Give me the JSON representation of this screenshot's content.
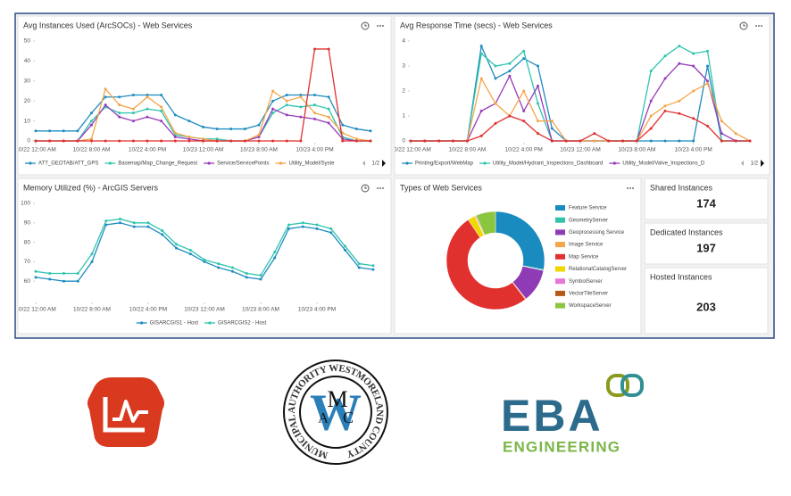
{
  "chart_data": [
    {
      "type": "line",
      "title": "Avg Instances Used (ArcSOCs) - Web Services",
      "x": [
        0,
        2,
        4,
        6,
        8,
        10,
        12,
        14,
        16,
        18,
        20,
        22,
        24,
        26,
        28,
        30,
        32,
        34,
        36,
        38,
        40,
        42,
        44,
        46,
        48
      ],
      "xlim": [
        0,
        48
      ],
      "xticks": [
        {
          "value": 0,
          "label": "10/22 12:00 AM"
        },
        {
          "value": 8,
          "label": "10/22 8:00 AM"
        },
        {
          "value": 16,
          "label": "10/22 4:00 PM"
        },
        {
          "value": 24,
          "label": "10/23 12:00 AM"
        },
        {
          "value": 32,
          "label": "10/23 8:00 AM"
        },
        {
          "value": 40,
          "label": "10/23 4:00 PM"
        }
      ],
      "ylim": [
        0,
        50
      ],
      "yticks": [
        0,
        10,
        20,
        30,
        40,
        50
      ],
      "legend_page": "1/2",
      "series": [
        {
          "name": "ATT_GEOTAB/ATT_GPS",
          "color": "#1f8cc0",
          "values": [
            5,
            5,
            5,
            5,
            14,
            22,
            22,
            23,
            23,
            23,
            13,
            10,
            7,
            6,
            6,
            6,
            8,
            20,
            23,
            23,
            23,
            22,
            8,
            6,
            5
          ]
        },
        {
          "name": "Basemap/Map_Change_Request",
          "color": "#2fc4ae",
          "values": [
            0,
            0,
            0,
            0,
            10,
            17,
            14,
            14,
            16,
            15,
            3,
            2,
            1,
            1,
            0,
            0,
            2,
            14,
            18,
            17,
            18,
            16,
            2,
            0,
            0
          ]
        },
        {
          "name": "Service/ServicePoints",
          "color": "#963cba",
          "values": [
            0,
            0,
            0,
            0,
            8,
            18,
            12,
            10,
            12,
            10,
            2,
            1,
            0,
            0,
            0,
            0,
            2,
            16,
            13,
            12,
            11,
            9,
            1,
            0,
            0
          ]
        },
        {
          "name": "Utility_Model/Syste",
          "color": "#f5a54a",
          "values": [
            0,
            0,
            0,
            0,
            1,
            26,
            18,
            16,
            22,
            17,
            4,
            2,
            1,
            0,
            0,
            0,
            3,
            25,
            20,
            22,
            14,
            12,
            4,
            1,
            0
          ]
        },
        {
          "color": "#e0312f",
          "values": [
            0,
            0,
            0,
            0,
            0,
            0,
            0,
            0,
            0,
            0,
            0,
            0,
            0,
            0,
            0,
            0,
            0,
            0,
            0,
            0,
            46,
            46,
            0,
            0,
            0
          ]
        }
      ]
    },
    {
      "type": "line",
      "title": "Avg Response Time (secs) - Web Services",
      "x": [
        0,
        2,
        4,
        6,
        8,
        10,
        12,
        14,
        16,
        18,
        20,
        22,
        24,
        26,
        28,
        30,
        32,
        34,
        36,
        38,
        40,
        42,
        44,
        46,
        48
      ],
      "xlim": [
        0,
        48
      ],
      "xticks": [
        {
          "value": 0,
          "label": "10/22 12:00 AM"
        },
        {
          "value": 8,
          "label": "10/22 8:00 AM"
        },
        {
          "value": 16,
          "label": "10/22 4:00 PM"
        },
        {
          "value": 24,
          "label": "10/23 12:00 AM"
        },
        {
          "value": 32,
          "label": "10/23 8:00 AM"
        },
        {
          "value": 40,
          "label": "10/23 4:00 PM"
        }
      ],
      "ylim": [
        0,
        4
      ],
      "yticks": [
        0,
        1,
        2,
        3,
        4
      ],
      "legend_page": "1/2",
      "series": [
        {
          "name": "Printing/Export/WebMap",
          "color": "#1f8cc0",
          "values": [
            0,
            0,
            0,
            0,
            0,
            3.8,
            2.5,
            2.8,
            3.3,
            3,
            0.5,
            0,
            0,
            0,
            0,
            0,
            0,
            0,
            0,
            0,
            0,
            3,
            0,
            0,
            0
          ]
        },
        {
          "name": "Utility_Model/Hydrant_Inspections_Dashboard",
          "color": "#2fc4ae",
          "values": [
            0,
            0,
            0,
            0,
            0,
            3.5,
            3,
            3.1,
            3.6,
            1.5,
            0,
            0,
            0,
            0,
            0,
            0,
            0,
            2.8,
            3.4,
            3.8,
            3.5,
            3.6,
            0,
            0,
            0
          ]
        },
        {
          "name": "Utility_Model/Valve_Inspections_D",
          "color": "#963cba",
          "values": [
            0,
            0,
            0,
            0,
            0,
            1.2,
            1.5,
            2.6,
            1.2,
            2.2,
            0,
            0,
            0,
            0,
            0,
            0,
            0,
            1.6,
            2.5,
            3.1,
            3,
            2.4,
            0.3,
            0,
            0
          ]
        },
        {
          "color": "#f5a54a",
          "values": [
            0,
            0,
            0,
            0,
            0,
            2.5,
            1.5,
            1,
            2,
            0.8,
            0.8,
            0,
            0,
            0,
            0,
            0,
            0,
            1,
            1.4,
            1.6,
            2,
            2.3,
            0.8,
            0.3,
            0
          ]
        },
        {
          "color": "#e0312f",
          "values": [
            0,
            0,
            0,
            0,
            0,
            0.2,
            0.7,
            1,
            0.8,
            0.3,
            0,
            0,
            0,
            0.3,
            0,
            0,
            0,
            0.5,
            1.2,
            1.1,
            0.9,
            0.6,
            0,
            0,
            0
          ]
        }
      ]
    },
    {
      "type": "line",
      "title": "Memory Utilized (%) - ArcGIS Servers",
      "x": [
        0,
        2,
        4,
        6,
        8,
        10,
        12,
        14,
        16,
        18,
        20,
        22,
        24,
        26,
        28,
        30,
        32,
        34,
        36,
        38,
        40,
        42,
        44,
        46,
        48
      ],
      "xlim": [
        0,
        48
      ],
      "xticks": [
        {
          "value": 0,
          "label": "10/22 12:00 AM"
        },
        {
          "value": 8,
          "label": "10/22 8:00 AM"
        },
        {
          "value": 16,
          "label": "10/22 4:00 PM"
        },
        {
          "value": 24,
          "label": "10/23 12:00 AM"
        },
        {
          "value": 32,
          "label": "10/23 8:00 AM"
        },
        {
          "value": 40,
          "label": "10/23 4:00 PM"
        }
      ],
      "ylim": [
        50,
        100
      ],
      "yticks": [
        60,
        70,
        80,
        90,
        100
      ],
      "series": [
        {
          "name": "GISARCGIS1 - Host",
          "color": "#1f8cc0",
          "values": [
            62,
            61,
            60,
            60,
            70,
            89,
            90,
            88,
            88,
            84,
            77,
            74,
            70,
            67,
            65,
            62,
            61,
            72,
            87,
            88,
            87,
            85,
            76,
            67,
            66
          ]
        },
        {
          "name": "GISARCGIS2 - Host",
          "color": "#2fc4ae",
          "values": [
            65,
            64,
            64,
            64,
            74,
            91,
            92,
            90,
            90,
            86,
            79,
            76,
            71,
            69,
            67,
            64,
            63,
            75,
            89,
            90,
            89,
            87,
            78,
            69,
            68
          ]
        }
      ]
    },
    {
      "type": "pie",
      "title": "Types of Web Services",
      "categories": [
        "Feature Service",
        "GeometryServer",
        "Geoprocessing Service",
        "Image Service",
        "Map Service",
        "RelationalCatalogServer",
        "SymbolServer",
        "VectorTileServer",
        "WorkspaceServer"
      ],
      "values": [
        28,
        0.3,
        11,
        0.3,
        51,
        2.5,
        0.2,
        0.3,
        6.4
      ],
      "colors": [
        "#1a8bbf",
        "#2ec4a6",
        "#8e3bb5",
        "#f5a54a",
        "#e0312f",
        "#f2d600",
        "#e676d9",
        "#b35a1a",
        "#8cc63f"
      ]
    }
  ],
  "cards": [
    {
      "title": "Shared Instances",
      "value": 174
    },
    {
      "title": "Dedicated Instances",
      "value": 197
    },
    {
      "title": "Hosted Instances",
      "value": 203
    }
  ],
  "logos": {
    "seal_text": "MUNICIPAL AUTHORITY WESTMORELAND COUNTY",
    "seal_letters": [
      "M",
      "W",
      "A",
      "C"
    ],
    "eba": "EBA",
    "eba_sub": "ENGINEERING"
  }
}
